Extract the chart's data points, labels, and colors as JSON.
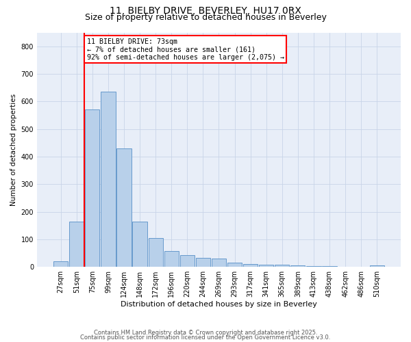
{
  "title1": "11, BIELBY DRIVE, BEVERLEY, HU17 0RX",
  "title2": "Size of property relative to detached houses in Beverley",
  "xlabel": "Distribution of detached houses by size in Beverley",
  "ylabel": "Number of detached properties",
  "categories": [
    "27sqm",
    "51sqm",
    "75sqm",
    "99sqm",
    "124sqm",
    "148sqm",
    "172sqm",
    "196sqm",
    "220sqm",
    "244sqm",
    "269sqm",
    "293sqm",
    "317sqm",
    "341sqm",
    "365sqm",
    "389sqm",
    "413sqm",
    "438sqm",
    "462sqm",
    "486sqm",
    "510sqm"
  ],
  "values": [
    20,
    165,
    570,
    635,
    430,
    165,
    105,
    57,
    42,
    32,
    30,
    15,
    10,
    8,
    7,
    5,
    3,
    2,
    1,
    0,
    6
  ],
  "bar_color": "#b8d0ea",
  "bar_edge_color": "#6699cc",
  "red_line_x": 1.5,
  "annotation_text": "11 BIELBY DRIVE: 73sqm\n← 7% of detached houses are smaller (161)\n92% of semi-detached houses are larger (2,075) →",
  "annotation_box_color": "white",
  "annotation_box_edge": "red",
  "footer1": "Contains HM Land Registry data © Crown copyright and database right 2025.",
  "footer2": "Contains public sector information licensed under the Open Government Licence v3.0.",
  "ylim": [
    0,
    850
  ],
  "yticks": [
    0,
    100,
    200,
    300,
    400,
    500,
    600,
    700,
    800
  ],
  "bg_color": "#e8eef8",
  "grid_color": "#c8d4e8",
  "title1_fontsize": 10,
  "title2_fontsize": 9
}
